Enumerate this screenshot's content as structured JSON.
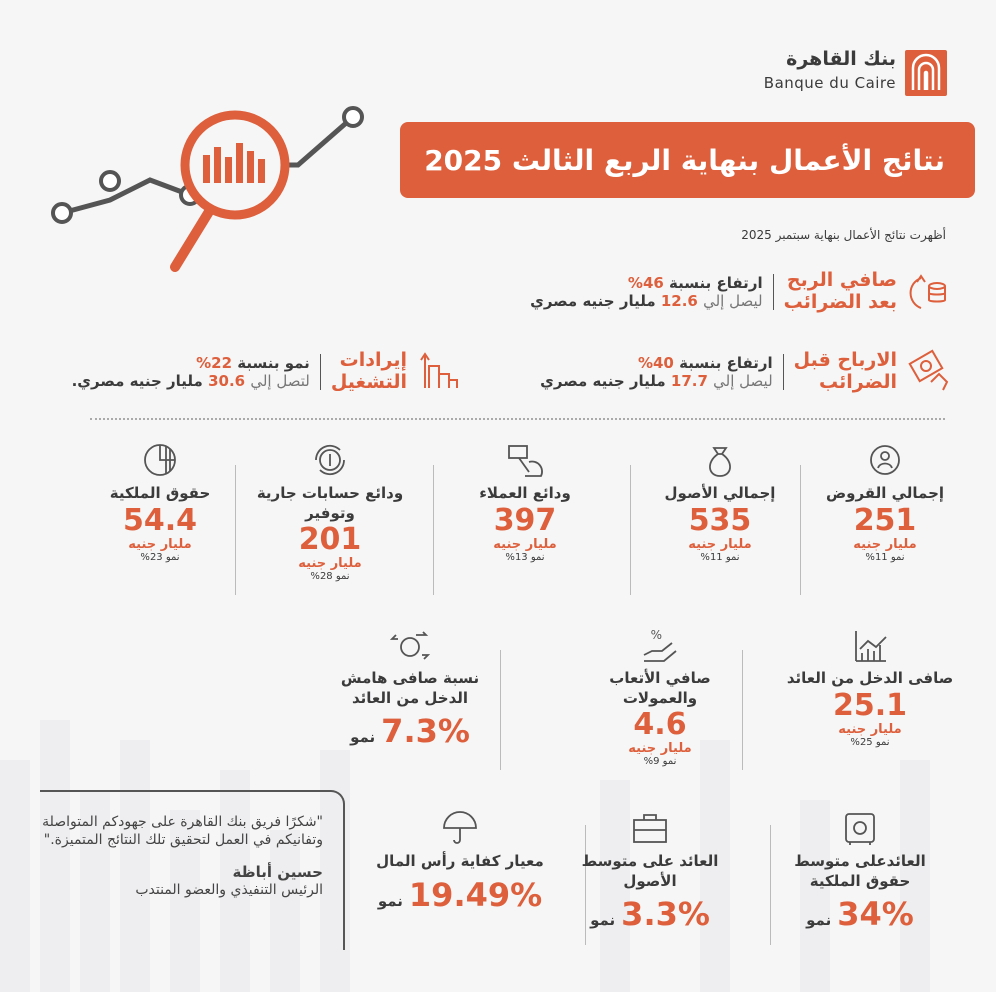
{
  "logo": {
    "arabic": "بنك القاهرة",
    "english": "Banque du Caire"
  },
  "title": "نتائج الأعمال بنهاية الربع الثالث 2025",
  "subtitle": "أظهرت نتائج الأعمال بنهاية سبتمبر 2025",
  "highlights": [
    {
      "title1": "صافي الربح",
      "title2": "بعد الضرائب",
      "growth_prefix": "ارتفاع بنسبة",
      "growth": "46%",
      "reach": "ليصل إلي",
      "value": "12.6",
      "unit": "مليار جنيه مصري",
      "icon": "coins-up-icon"
    },
    {
      "title1": "الارباح قبل",
      "title2": "الضرائب",
      "growth_prefix": "ارتفاع بنسبة",
      "growth": "40%",
      "reach": "ليصل إلي",
      "value": "17.7",
      "unit": "مليار جنيه مصري",
      "icon": "money-hand-icon"
    },
    {
      "title1": "إيرادات",
      "title2": "التشغيل",
      "growth_prefix": "نمو بنسبة",
      "growth": "22%",
      "reach": "لتصل إلي",
      "value": "30.6",
      "unit": "مليار جنيه مصري.",
      "icon": "bar-growth-icon"
    }
  ],
  "stats": [
    {
      "label": "إجمالي القروض",
      "value": "251",
      "unit": "مليار جنيه",
      "growth": "نمو 11%",
      "icon": "loans-icon"
    },
    {
      "label": "إجمالي الأصول",
      "value": "535",
      "unit": "مليار جنيه",
      "growth": "نمو 11%",
      "icon": "money-bag-icon"
    },
    {
      "label": "ودائع العملاء",
      "value": "397",
      "unit": "مليار جنيه",
      "growth": "نمو 13%",
      "icon": "deposit-hand-icon"
    },
    {
      "label": "ودائع حسابات جارية وتوفير",
      "value": "201",
      "unit": "مليار جنيه",
      "growth": "نمو 28%",
      "icon": "dollar-cycle-icon"
    },
    {
      "label": "حقوق الملكية",
      "value": "54.4",
      "unit": "مليار جنيه",
      "growth": "نمو 23%",
      "icon": "pie-chart-icon"
    },
    {
      "label": "صافى الدخل من العائد",
      "value": "25.1",
      "unit": "مليار جنيه",
      "growth": "نمو 25%",
      "icon": "line-chart-icon"
    },
    {
      "label": "صافي الأتعاب والعمولات",
      "value": "4.6",
      "unit": "مليار جنيه",
      "growth": "نمو 9%",
      "icon": "percent-hand-icon"
    },
    {
      "label": "نسبة صافى هامش الدخل من العائد",
      "value": "7.3%",
      "unit": "",
      "growth": "نمو",
      "icon": "exchange-icon"
    },
    {
      "label": "العائدعلى متوسط حقوق الملكية",
      "value": "34%",
      "unit": "",
      "growth": "نمو",
      "icon": "safe-icon"
    },
    {
      "label": "العائد على متوسط الأصول",
      "value": "3.3%",
      "unit": "",
      "growth": "نمو",
      "icon": "briefcase-icon"
    },
    {
      "label": "معيار كفاية رأس المال",
      "value": "19.49%",
      "unit": "",
      "growth": "نمو",
      "icon": "umbrella-icon"
    }
  ],
  "quote": {
    "text": "\"شكرًا فريق بنك القاهرة على جهودكم المتواصلة وتفانيكم في العمل لتحقيق تلك النتائج المتميزة.\"",
    "name": "حسين أباظة",
    "role": "الرئيس التنفيذي والعضو المنتدب"
  },
  "colors": {
    "accent": "#dd5f3b",
    "text": "#3b3b3b",
    "background": "#f6f6f7"
  }
}
